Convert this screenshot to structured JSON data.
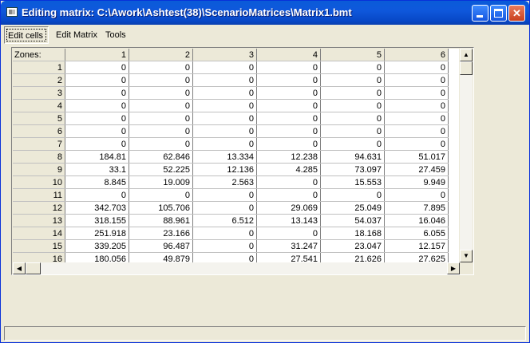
{
  "window": {
    "title": "Editing matrix: C:\\Awork\\Ashtest(38)\\ScenarioMatrices\\Matrix1.bmt",
    "icons": {
      "app": "matrix-app-icon",
      "minimize": "minimize-icon",
      "maximize": "maximize-icon",
      "close": "close-icon"
    },
    "close_glyph": "✕"
  },
  "menu": {
    "items": [
      {
        "label": "Edit cells",
        "pressed": true
      },
      {
        "label": "Edit Matrix",
        "pressed": false
      },
      {
        "label": "Tools",
        "pressed": false
      }
    ]
  },
  "grid": {
    "corner_label": "Zones:",
    "columns": [
      "1",
      "2",
      "3",
      "4",
      "5",
      "6"
    ],
    "rows": [
      {
        "label": "1",
        "values": [
          "0",
          "0",
          "0",
          "0",
          "0",
          "0"
        ]
      },
      {
        "label": "2",
        "values": [
          "0",
          "0",
          "0",
          "0",
          "0",
          "0"
        ]
      },
      {
        "label": "3",
        "values": [
          "0",
          "0",
          "0",
          "0",
          "0",
          "0"
        ]
      },
      {
        "label": "4",
        "values": [
          "0",
          "0",
          "0",
          "0",
          "0",
          "0"
        ]
      },
      {
        "label": "5",
        "values": [
          "0",
          "0",
          "0",
          "0",
          "0",
          "0"
        ]
      },
      {
        "label": "6",
        "values": [
          "0",
          "0",
          "0",
          "0",
          "0",
          "0"
        ]
      },
      {
        "label": "7",
        "values": [
          "0",
          "0",
          "0",
          "0",
          "0",
          "0"
        ]
      },
      {
        "label": "8",
        "values": [
          "184.81",
          "62.846",
          "13.334",
          "12.238",
          "94.631",
          "51.017"
        ]
      },
      {
        "label": "9",
        "values": [
          "33.1",
          "52.225",
          "12.136",
          "4.285",
          "73.097",
          "27.459"
        ]
      },
      {
        "label": "10",
        "values": [
          "8.845",
          "19.009",
          "2.563",
          "0",
          "15.553",
          "9.949"
        ]
      },
      {
        "label": "11",
        "values": [
          "0",
          "0",
          "0",
          "0",
          "0",
          "0"
        ]
      },
      {
        "label": "12",
        "values": [
          "342.703",
          "105.706",
          "0",
          "29.069",
          "25.049",
          "7.895"
        ]
      },
      {
        "label": "13",
        "values": [
          "318.155",
          "88.961",
          "6.512",
          "13.143",
          "54.037",
          "16.046"
        ]
      },
      {
        "label": "14",
        "values": [
          "251.918",
          "23.166",
          "0",
          "0",
          "18.168",
          "6.055"
        ]
      },
      {
        "label": "15",
        "values": [
          "339.205",
          "96.487",
          "0",
          "31.247",
          "23.047",
          "12.157"
        ]
      },
      {
        "label": "16",
        "values": [
          "180.056",
          "49.879",
          "0",
          "27.541",
          "21.626",
          "27.625"
        ]
      }
    ]
  },
  "scrollbars": {
    "up": "▲",
    "down": "▼",
    "left": "◀",
    "right": "▶",
    "icons": {
      "up": "scroll-up-arrow-icon",
      "down": "scroll-down-arrow-icon",
      "left": "scroll-left-arrow-icon",
      "right": "scroll-right-arrow-icon"
    }
  },
  "status": {
    "text": ""
  }
}
